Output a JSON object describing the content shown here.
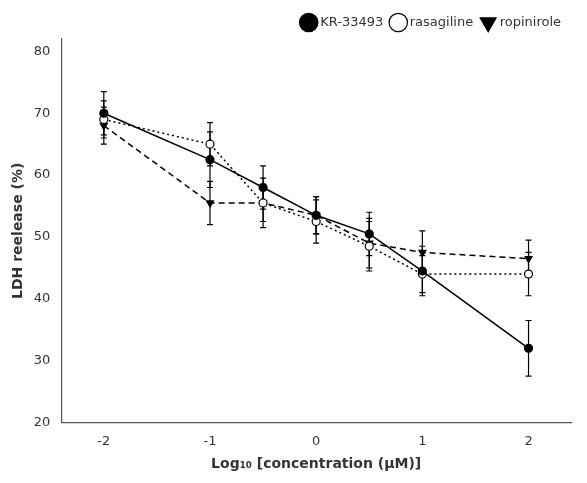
{
  "chart_data": {
    "type": "line",
    "x": [
      -2,
      -1,
      -0.5,
      0,
      0.5,
      1,
      2
    ],
    "series": [
      {
        "name": "KR-33493",
        "color": "#000000",
        "marker": "circle",
        "line_style": "solid",
        "values": [
          70.0,
          62.5,
          58.0,
          53.5,
          50.5,
          44.5,
          32.0
        ],
        "errors": [
          3.5,
          4.5,
          3.5,
          3.0,
          3.5,
          4.0,
          4.5
        ]
      },
      {
        "name": "rasagiline",
        "color": "#000000",
        "marker": "open_circle",
        "line_style": "dotted",
        "values": [
          69.0,
          65.0,
          55.5,
          52.5,
          48.5,
          44.0,
          44.0
        ],
        "errors": [
          3.0,
          3.5,
          4.0,
          3.5,
          4.0,
          3.0,
          3.5
        ]
      },
      {
        "name": "ropinirole",
        "color": "#000000",
        "marker": "triangle_down",
        "line_style": "dashed",
        "values": [
          68.0,
          55.5,
          55.5,
          53.5,
          49.0,
          47.5,
          46.5
        ],
        "errors": [
          3.0,
          3.5,
          3.0,
          3.0,
          4.0,
          3.5,
          3.0
        ]
      }
    ],
    "xlabel": "Log₁₀ [concentration (μM)]",
    "ylabel": "LDH reelease (%)",
    "xlim": [
      -2.4,
      2.4
    ],
    "ylim": [
      20,
      82
    ],
    "xticks": [
      -2,
      -1,
      0,
      1,
      2
    ],
    "yticks": [
      20,
      30,
      40,
      50,
      60,
      70,
      80
    ],
    "grid": false,
    "legend": "upper right"
  }
}
